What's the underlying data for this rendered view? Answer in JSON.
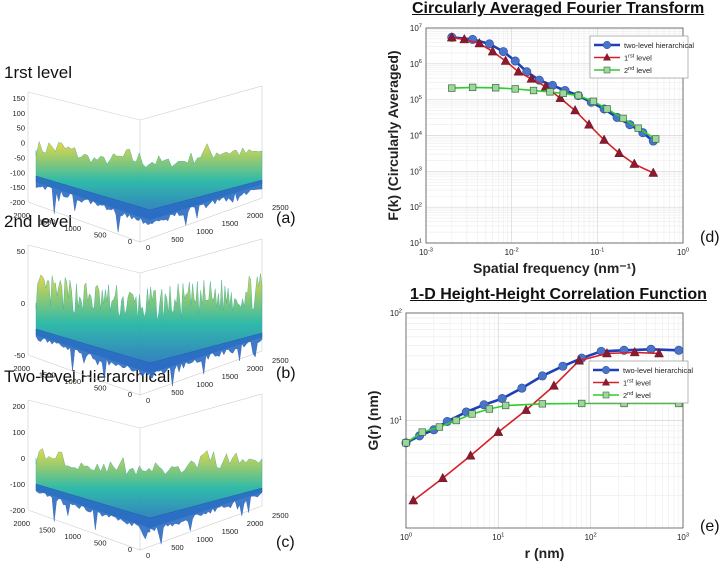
{
  "panels": {
    "a": {
      "level_label": "1rst level",
      "tag": "(a)",
      "z_ticks": [
        "150",
        "100",
        "50",
        "0",
        "-50",
        "-100",
        "-150",
        "-200"
      ],
      "y_ticks": [
        "2000",
        "1500",
        "1000",
        "500",
        "0"
      ],
      "x_ticks": [
        "0",
        "500",
        "1000",
        "1500",
        "2000",
        "2500"
      ]
    },
    "b": {
      "level_label": "2nd level",
      "tag": "(b)",
      "z_ticks": [
        "50",
        "0",
        "-50"
      ],
      "y_ticks": [
        "2000",
        "1500",
        "1000",
        "500",
        "0"
      ],
      "x_ticks": [
        "0",
        "500",
        "1000",
        "1500",
        "2000",
        "2500"
      ]
    },
    "c": {
      "level_label": "Two-level Hierarchical",
      "tag": "(c)",
      "z_ticks": [
        "200",
        "100",
        "0",
        "-100",
        "-200"
      ],
      "y_ticks": [
        "2000",
        "1500",
        "1000",
        "500",
        "0"
      ],
      "x_ticks": [
        "0",
        "500",
        "1000",
        "1500",
        "2000",
        "2500"
      ]
    },
    "d": {
      "tag": "(d)"
    },
    "e": {
      "tag": "(e)"
    }
  },
  "colors": {
    "blue": "#1f3fb8",
    "blue_marker": "#4a74c9",
    "red": "#d4202a",
    "red_marker": "#8b1a2e",
    "green": "#2ad12a",
    "green_marker": "#9ed69e",
    "surface_low": "#2b6cc4",
    "surface_mid": "#25b7a5",
    "surface_high": "#e8d63a"
  },
  "chart_data": [
    {
      "id": "fourier",
      "type": "line",
      "title": "Circularly Averaged Fourier Transform",
      "xlabel": "Spatial frequency (nm⁻¹)",
      "ylabel": "F(k) (Circularly Averaged)",
      "xscale": "log",
      "yscale": "log",
      "xlim": [
        0.001,
        1
      ],
      "ylim": [
        10,
        10000000
      ],
      "x_ticks": [
        {
          "v": 0.001,
          "b": "10",
          "e": "-3"
        },
        {
          "v": 0.01,
          "b": "10",
          "e": "-2"
        },
        {
          "v": 0.1,
          "b": "10",
          "e": "-1"
        },
        {
          "v": 1,
          "b": "10",
          "e": "0"
        }
      ],
      "y_ticks": [
        {
          "v": 10,
          "b": "10",
          "e": "1"
        },
        {
          "v": 100,
          "b": "10",
          "e": "2"
        },
        {
          "v": 1000,
          "b": "10",
          "e": "3"
        },
        {
          "v": 10000,
          "b": "10",
          "e": "4"
        },
        {
          "v": 100000,
          "b": "10",
          "e": "5"
        },
        {
          "v": 1000000,
          "b": "10",
          "e": "6"
        },
        {
          "v": 10000000,
          "b": "10",
          "e": "7"
        }
      ],
      "grid": true,
      "legend": "top-right",
      "series": [
        {
          "name": "two-level hierarchical",
          "sup": "",
          "suffix": "",
          "color": "blue",
          "marker": "circle",
          "x": [
            0.002,
            0.0035,
            0.0055,
            0.008,
            0.011,
            0.015,
            0.021,
            0.03,
            0.042,
            0.06,
            0.085,
            0.12,
            0.17,
            0.24,
            0.34,
            0.45
          ],
          "y": [
            5500000,
            4800000,
            3600000,
            2200000,
            1200000,
            600000,
            350000,
            250000,
            180000,
            130000,
            85000,
            55000,
            32000,
            20000,
            12000,
            7000
          ]
        },
        {
          "name": "1",
          "sup": "rst",
          "suffix": " level",
          "color": "red",
          "marker": "triangle",
          "x": [
            0.002,
            0.0028,
            0.0042,
            0.006,
            0.0085,
            0.012,
            0.017,
            0.025,
            0.037,
            0.055,
            0.08,
            0.12,
            0.18,
            0.27,
            0.45
          ],
          "y": [
            5400000,
            4800000,
            3700000,
            2200000,
            1200000,
            600000,
            380000,
            230000,
            110000,
            50000,
            20000,
            7500,
            3200,
            1600,
            900
          ]
        },
        {
          "name": "2",
          "sup": "nd",
          "suffix": " level",
          "color": "green",
          "marker": "square",
          "x": [
            0.002,
            0.0035,
            0.0065,
            0.011,
            0.018,
            0.028,
            0.04,
            0.06,
            0.09,
            0.13,
            0.2,
            0.3,
            0.48
          ],
          "y": [
            210000,
            220000,
            215000,
            200000,
            180000,
            165000,
            150000,
            130000,
            90000,
            55000,
            30000,
            16000,
            8000
          ]
        }
      ]
    },
    {
      "id": "correlation",
      "type": "line",
      "title": "1-D Height-Height Correlation Function",
      "xlabel": "r (nm)",
      "ylabel": "G(r) (nm)",
      "xscale": "log",
      "yscale": "log",
      "xlim": [
        1,
        1000
      ],
      "ylim": [
        1,
        100
      ],
      "x_ticks": [
        {
          "v": 1,
          "b": "10",
          "e": "0"
        },
        {
          "v": 10,
          "b": "10",
          "e": "1"
        },
        {
          "v": 100,
          "b": "10",
          "e": "2"
        },
        {
          "v": 1000,
          "b": "10",
          "e": "3"
        }
      ],
      "y_ticks": [
        {
          "v": 10,
          "b": "10",
          "e": "1"
        },
        {
          "v": 100,
          "b": "10",
          "e": "2"
        }
      ],
      "grid": true,
      "legend": "middle-right",
      "series": [
        {
          "name": "two-level hierarchical",
          "sup": "",
          "suffix": "",
          "color": "blue",
          "marker": "circle",
          "x": [
            1,
            1.4,
            2,
            2.8,
            4.5,
            7,
            11,
            18,
            30,
            50,
            80,
            130,
            230,
            450,
            900
          ],
          "y": [
            6.2,
            7.2,
            8.2,
            9.8,
            12,
            14,
            16,
            20,
            26,
            32,
            38,
            44,
            45,
            46,
            45
          ]
        },
        {
          "name": "1",
          "sup": "rst",
          "suffix": " level",
          "color": "red",
          "marker": "triangle",
          "x": [
            1.2,
            2.5,
            5,
            10,
            20,
            40,
            75,
            150,
            300,
            550
          ],
          "y": [
            1.8,
            2.9,
            4.7,
            7.8,
            12.5,
            21,
            36,
            42,
            43,
            42
          ]
        },
        {
          "name": "2",
          "sup": "nd",
          "suffix": " level",
          "color": "green",
          "marker": "square",
          "x": [
            1,
            1.5,
            2.3,
            3.5,
            5.2,
            8,
            12,
            30,
            80,
            230,
            900
          ],
          "y": [
            6.2,
            7.8,
            8.7,
            10,
            11.5,
            12.8,
            13.8,
            14.3,
            14.4,
            14.4,
            14.4
          ]
        }
      ]
    }
  ]
}
